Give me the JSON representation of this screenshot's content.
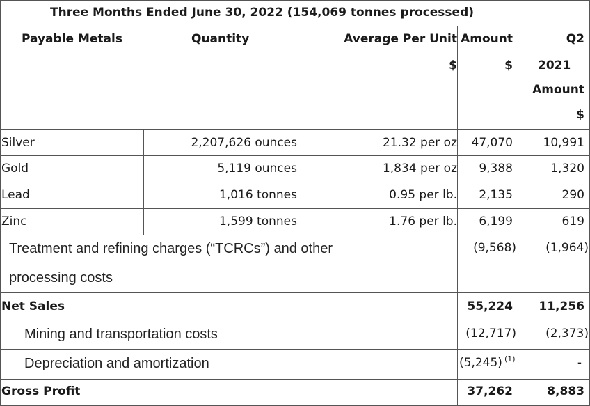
{
  "table": {
    "title": "Three Months Ended June 30, 2022 (154,069 tonnes processed)",
    "headers": {
      "payable_metals": "Payable Metals",
      "quantity": "Quantity",
      "average_per_unit": "Average Per Unit",
      "average_per_unit_currency": "$",
      "amount": "Amount",
      "amount_currency": "$",
      "q2": "Q2",
      "year_2021": "2021",
      "amount_2021": "Amount",
      "amount_2021_currency": "$"
    },
    "metal_rows": [
      {
        "metal": "Silver",
        "quantity": "2,207,626 ounces",
        "avg": "21.32 per oz",
        "amount": "47,070",
        "prior": "10,991"
      },
      {
        "metal": "Gold",
        "quantity": "5,119 ounces",
        "avg": "1,834 per oz",
        "amount": "9,388",
        "prior": "1,320"
      },
      {
        "metal": "Lead",
        "quantity": "1,016 tonnes",
        "avg": "0.95 per lb.",
        "amount": "2,135",
        "prior": "290"
      },
      {
        "metal": "Zinc",
        "quantity": "1,599 tonnes",
        "avg": "1.76 per lb.",
        "amount": "6,199",
        "prior": "619"
      }
    ],
    "tcrc": {
      "label_line1": "Treatment and refining charges (“TCRCs”) and other",
      "label_line2": "processing costs",
      "amount": "(9,568)",
      "prior": "(1,964)"
    },
    "net_sales": {
      "label": "Net Sales",
      "amount": "55,224",
      "prior": "11,256"
    },
    "mining": {
      "label": "Mining and transportation costs",
      "amount": "(12,717)",
      "prior": "(2,373)"
    },
    "depreciation": {
      "label": "Depreciation and amortization",
      "amount": "(5,245)",
      "footnote": "(1)",
      "prior": "-"
    },
    "gross_profit": {
      "label": "Gross Profit",
      "amount": "37,262",
      "prior": "8,883"
    }
  }
}
